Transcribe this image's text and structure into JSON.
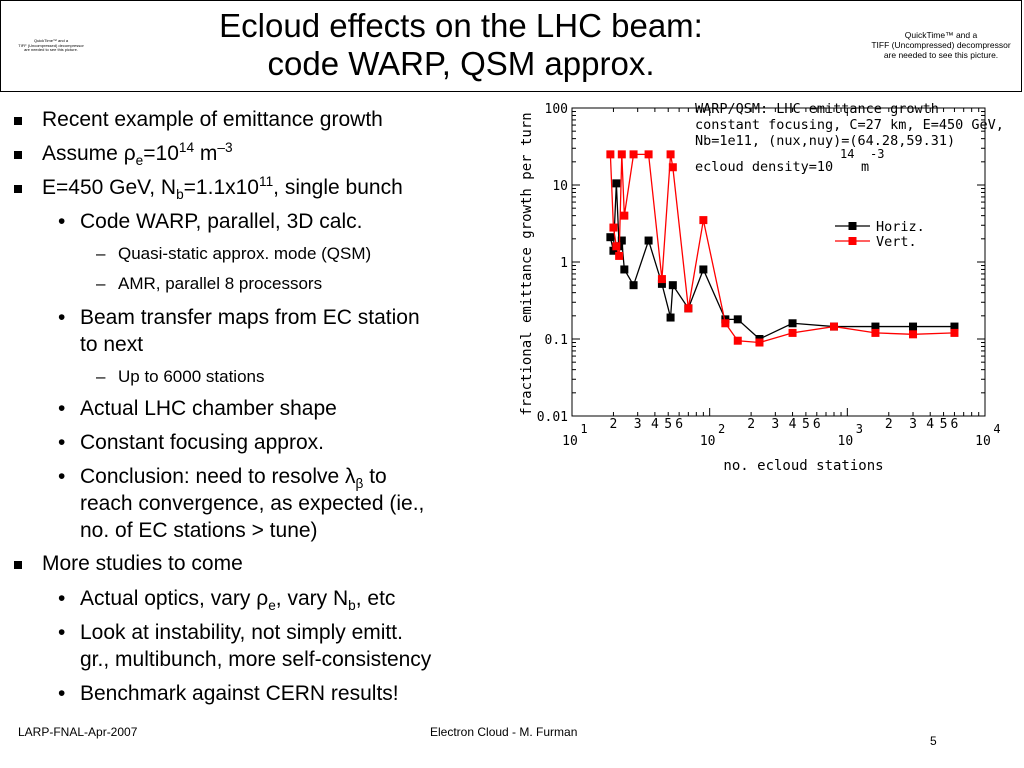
{
  "header": {
    "title_line1": "Ecloud effects on the LHC beam:",
    "title_line2": "code WARP, QSM approx.",
    "quicktime_left": {
      "line1": "QuickTime™ and a",
      "line2": "TIFF (Uncompressed) decompressor",
      "line3": "are needed to see this picture."
    },
    "quicktime_right": {
      "line1": "QuickTime™ and a",
      "line2": "TIFF (Uncompressed) decompressor",
      "line3": "are needed to see this picture."
    }
  },
  "bullets": {
    "b1": "Recent example of emittance growth",
    "b2": {
      "pre": "Assume ",
      "rho": "ρ",
      "sub": "e",
      "eq": "=10",
      "exp": "14",
      "unit": " m",
      "unit_exp": "–3"
    },
    "b3": {
      "pre": "E=450 GeV, N",
      "sub": "b",
      "eq": "=1.1x10",
      "exp": "11",
      "post": ", single bunch"
    },
    "b4": "Code WARP, parallel, 3D calc.",
    "b5": "Quasi-static approx. mode (QSM)",
    "b6": "AMR, parallel 8 processors",
    "b7_line1": "Beam transfer maps from EC station",
    "b7_line2": "to next",
    "b8": "Up to 6000 stations",
    "b9": "Actual LHC chamber shape",
    "b10": "Constant focusing approx.",
    "b11": {
      "pre": "Conclusion: need to resolve ",
      "lambda": "λ",
      "beta": "β",
      "post": " to"
    },
    "b11_line2": "reach convergence, as expected (ie.,",
    "b11_line3": "no. of EC stations > tune)",
    "b12": "More studies to come",
    "b13": {
      "pre": "Actual optics, vary ",
      "rho": "ρ",
      "sub": "e",
      "mid": ", vary N",
      "sub2": "b",
      "post": ", etc"
    },
    "b14_line1": "Look at instability, not simply emitt.",
    "b14_line2": "gr., multibunch, more self-consistency",
    "b15": "Benchmark against CERN results!",
    "dash": "–",
    "dot": "•"
  },
  "footer": {
    "left": "LARP-FNAL-Apr-2007",
    "center": "Electron Cloud - M. Furman",
    "page": "5"
  },
  "chart_data": {
    "type": "line",
    "title_lines": [
      "WARP/QSM: LHC emittance growth",
      "constant focusing, C=27 km, E=450 GeV,",
      "Nb=1e11, (nux,nuy)=(64.28,59.31)"
    ],
    "density_label": {
      "pre": "ecloud density=10",
      "exp1": "14",
      "exp2": "-3",
      "post": "m"
    },
    "xlabel": "no. ecloud stations",
    "ylabel": "fractional emittance growth per turn",
    "xscale": "log",
    "yscale": "log",
    "xlim": [
      10,
      10000
    ],
    "ylim": [
      0.01,
      100
    ],
    "y_tick_labels": [
      "0.01",
      "0.1",
      "1",
      "10",
      "100"
    ],
    "y_tick_values": [
      0.01,
      0.1,
      1,
      10,
      100
    ],
    "x_major": [
      {
        "value": 10,
        "base": "10",
        "exp": "1"
      },
      {
        "value": 100,
        "base": "10",
        "exp": "2"
      },
      {
        "value": 1000,
        "base": "10",
        "exp": "3"
      },
      {
        "value": 10000,
        "base": "10",
        "exp": "4"
      }
    ],
    "x_minor_labels": [
      "2",
      "3",
      "4",
      "5",
      "6"
    ],
    "legend_position": "top-right",
    "series": [
      {
        "name": "Horiz.",
        "color": "#000000",
        "marker": "square",
        "x": [
          19,
          20,
          21,
          22,
          23,
          24,
          28,
          36,
          45,
          52,
          54,
          70,
          90,
          130,
          160,
          230,
          400,
          800,
          1600,
          3000,
          6000
        ],
        "y": [
          2.1,
          1.4,
          10.5,
          1.6,
          1.9,
          0.8,
          0.5,
          1.9,
          0.52,
          0.19,
          0.5,
          0.25,
          0.8,
          0.18,
          0.18,
          0.1,
          0.16,
          0.145,
          0.145,
          0.145,
          0.145
        ]
      },
      {
        "name": "Vert.",
        "color": "#ff0000",
        "marker": "square",
        "x": [
          19,
          20,
          21,
          22,
          23,
          24,
          28,
          36,
          45,
          52,
          54,
          70,
          90,
          130,
          160,
          230,
          400,
          800,
          1600,
          3000,
          6000
        ],
        "y": [
          25,
          2.8,
          1.6,
          1.2,
          25,
          4,
          25,
          25,
          0.6,
          25,
          17,
          0.25,
          3.5,
          0.16,
          0.095,
          0.09,
          0.12,
          0.145,
          0.12,
          0.115,
          0.12
        ]
      }
    ]
  }
}
